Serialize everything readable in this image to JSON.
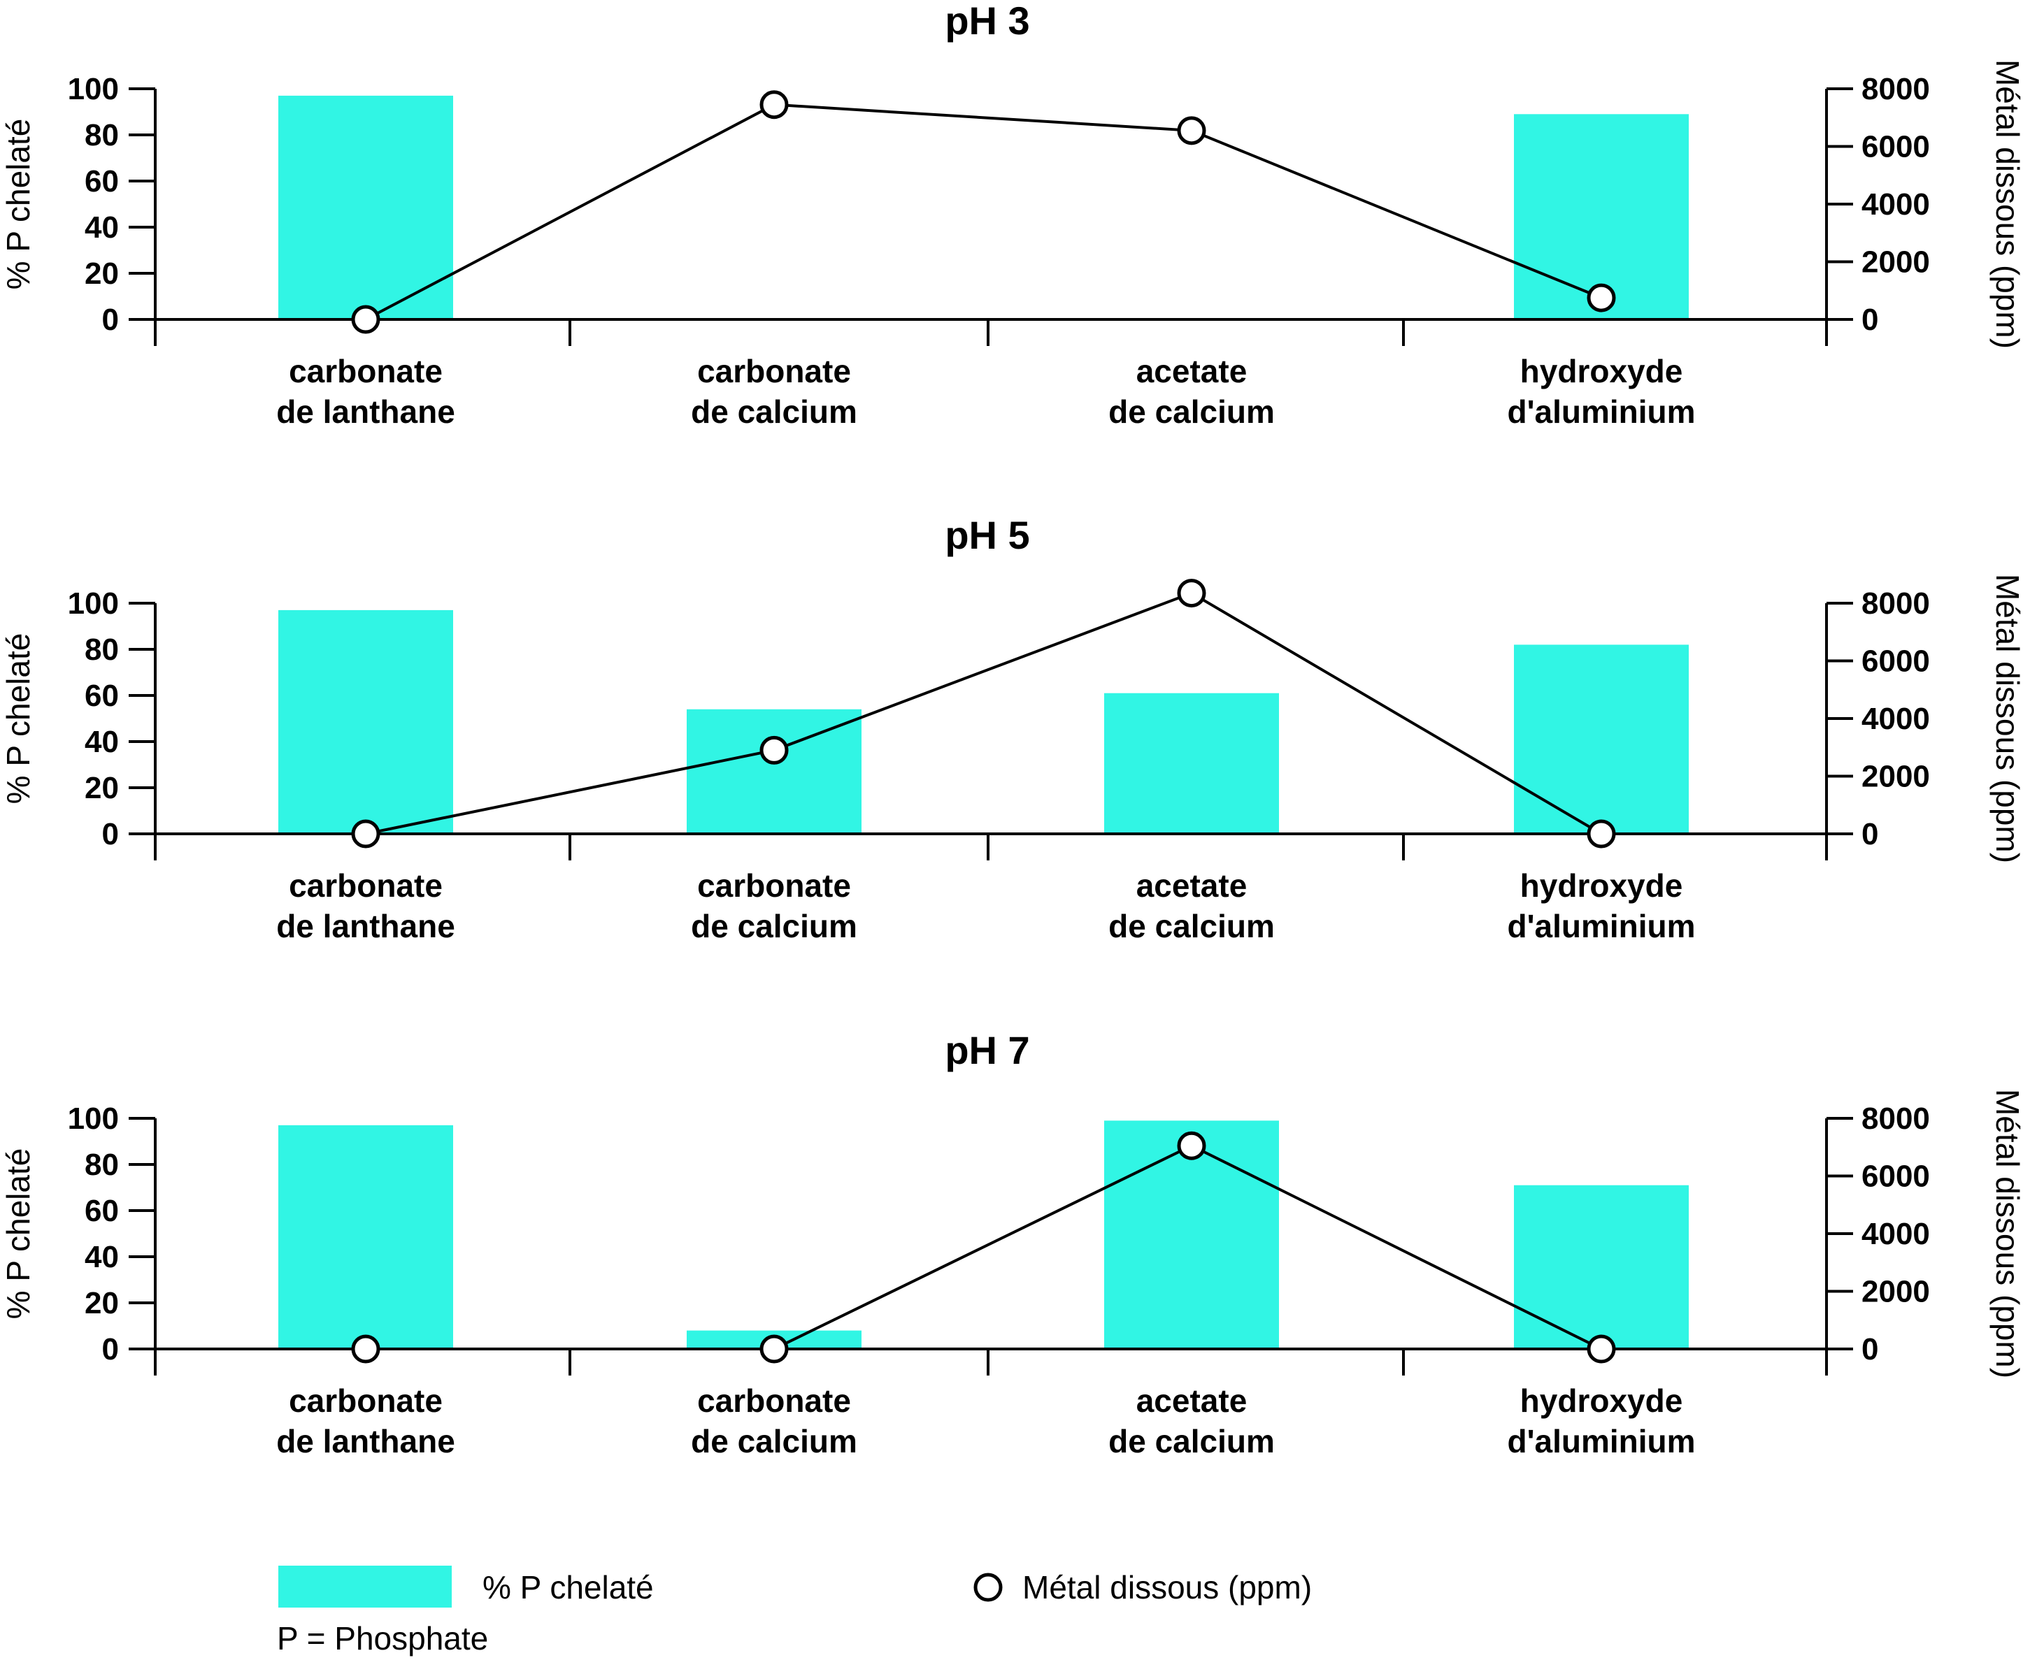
{
  "chart_data": {
    "type": "bar",
    "categories": [
      [
        "carbonate",
        "de lanthane"
      ],
      [
        "carbonate",
        "de calcium"
      ],
      [
        "acetate",
        "de calcium"
      ],
      [
        "hydroxyde",
        "d'aluminium"
      ]
    ],
    "left_axis": {
      "label": "% P chelaté",
      "ylim": [
        0,
        100
      ],
      "ticks": [
        0,
        20,
        40,
        60,
        80,
        100
      ]
    },
    "right_axis": {
      "label": "Métal dissous (ppm)",
      "ylim": [
        0,
        8000
      ],
      "ticks": [
        0,
        2000,
        4000,
        6000,
        8000
      ]
    },
    "grid": false,
    "panels": [
      {
        "title": "pH 3",
        "series": [
          {
            "name": "% P chelaté",
            "type": "bar",
            "axis": "left",
            "values": [
              97,
              0,
              0,
              89
            ]
          },
          {
            "name": "Métal dissous (ppm)",
            "type": "line",
            "axis": "right",
            "values": [
              0,
              7450,
              6550,
              750
            ]
          }
        ]
      },
      {
        "title": "pH 5",
        "series": [
          {
            "name": "% P chelaté",
            "type": "bar",
            "axis": "left",
            "values": [
              97,
              54,
              61,
              82
            ]
          },
          {
            "name": "Métal dissous (ppm)",
            "type": "line",
            "axis": "right",
            "values": [
              0,
              2900,
              8350,
              0
            ]
          }
        ]
      },
      {
        "title": "pH 7",
        "series": [
          {
            "name": "% P chelaté",
            "type": "bar",
            "axis": "left",
            "values": [
              97,
              8,
              99,
              71
            ]
          },
          {
            "name": "Métal dissous (ppm)",
            "type": "line",
            "axis": "right",
            "values": [
              0,
              0,
              7050,
              0
            ]
          }
        ]
      }
    ],
    "legend": {
      "placement": "bottom",
      "bar_label": "% P chelaté",
      "line_label": "Métal dissous (ppm)",
      "note": "P = Phosphate"
    },
    "colors": {
      "bar": "#31F5E4",
      "line": "#000000",
      "marker_fill": "#ffffff"
    }
  }
}
